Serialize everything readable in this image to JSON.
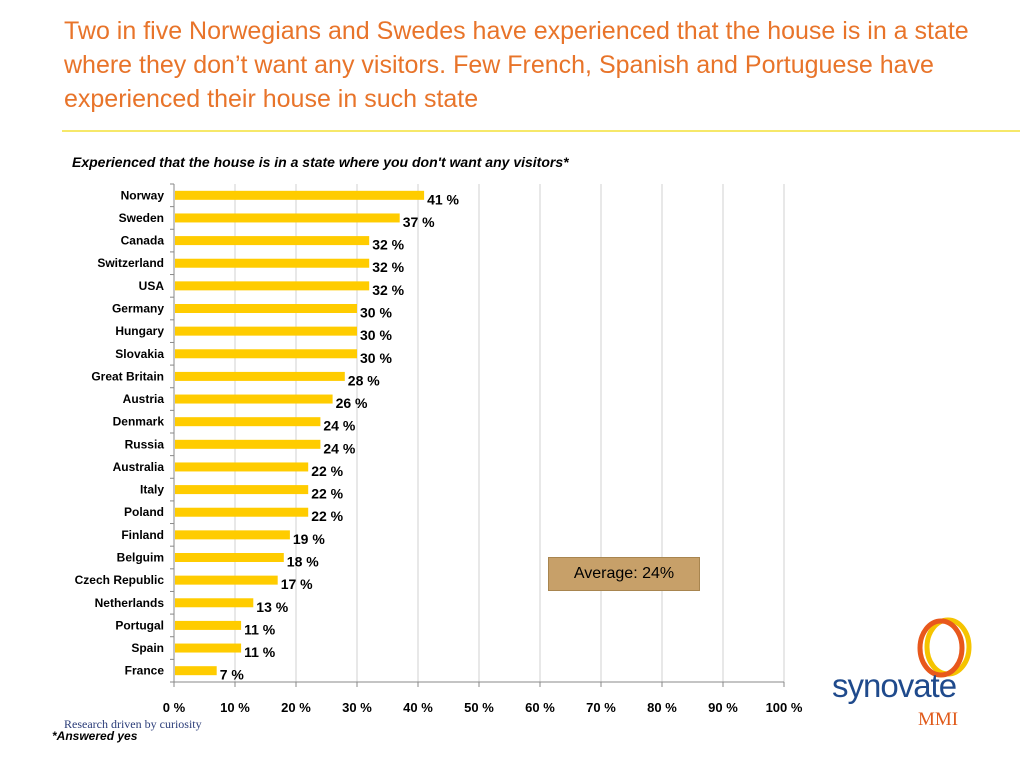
{
  "title": "Two in five Norwegians and Swedes have experienced that the house is in a state where they don’t want any visitors. Few French, Spanish and Portuguese have experienced their house in such state",
  "average_label": "Average: 24%",
  "footnote": "*Answered yes",
  "tagline": "Research driven by curiosity",
  "logo": {
    "word": "synovate",
    "sub": "MMI"
  },
  "colors": {
    "bar": "#ffcc00",
    "title": "#e8742a",
    "grid": "#d0d0d0",
    "average_box": "#c7a069"
  },
  "chart_data": {
    "type": "bar",
    "orientation": "horizontal",
    "title": "Experienced that the house is in a state where you don't want any visitors*",
    "categories": [
      "Norway",
      "Sweden",
      "Canada",
      "Switzerland",
      "USA",
      "Germany",
      "Hungary",
      "Slovakia",
      "Great Britain",
      "Austria",
      "Denmark",
      "Russia",
      "Australia",
      "Italy",
      "Poland",
      "Finland",
      "Belguim",
      "Czech Republic",
      "Netherlands",
      "Portugal",
      "Spain",
      "France"
    ],
    "values": [
      41,
      37,
      32,
      32,
      32,
      30,
      30,
      30,
      28,
      26,
      24,
      24,
      22,
      22,
      22,
      19,
      18,
      17,
      13,
      11,
      11,
      7
    ],
    "value_labels": [
      "41 %",
      "37 %",
      "32 %",
      "32 %",
      "32 %",
      "30 %",
      "30 %",
      "30 %",
      "28 %",
      "26 %",
      "24 %",
      "24 %",
      "22 %",
      "22 %",
      "22 %",
      "19 %",
      "18 %",
      "17 %",
      "13 %",
      "11 %",
      "11 %",
      "7 %"
    ],
    "xlim": [
      0,
      100
    ],
    "xticks": [
      0,
      10,
      20,
      30,
      40,
      50,
      60,
      70,
      80,
      90,
      100
    ],
    "xtick_labels": [
      "0 %",
      "10 %",
      "20 %",
      "30 %",
      "40 %",
      "50 %",
      "60 %",
      "70 %",
      "80 %",
      "90 %",
      "100 %"
    ],
    "grid": true,
    "legend": false
  }
}
